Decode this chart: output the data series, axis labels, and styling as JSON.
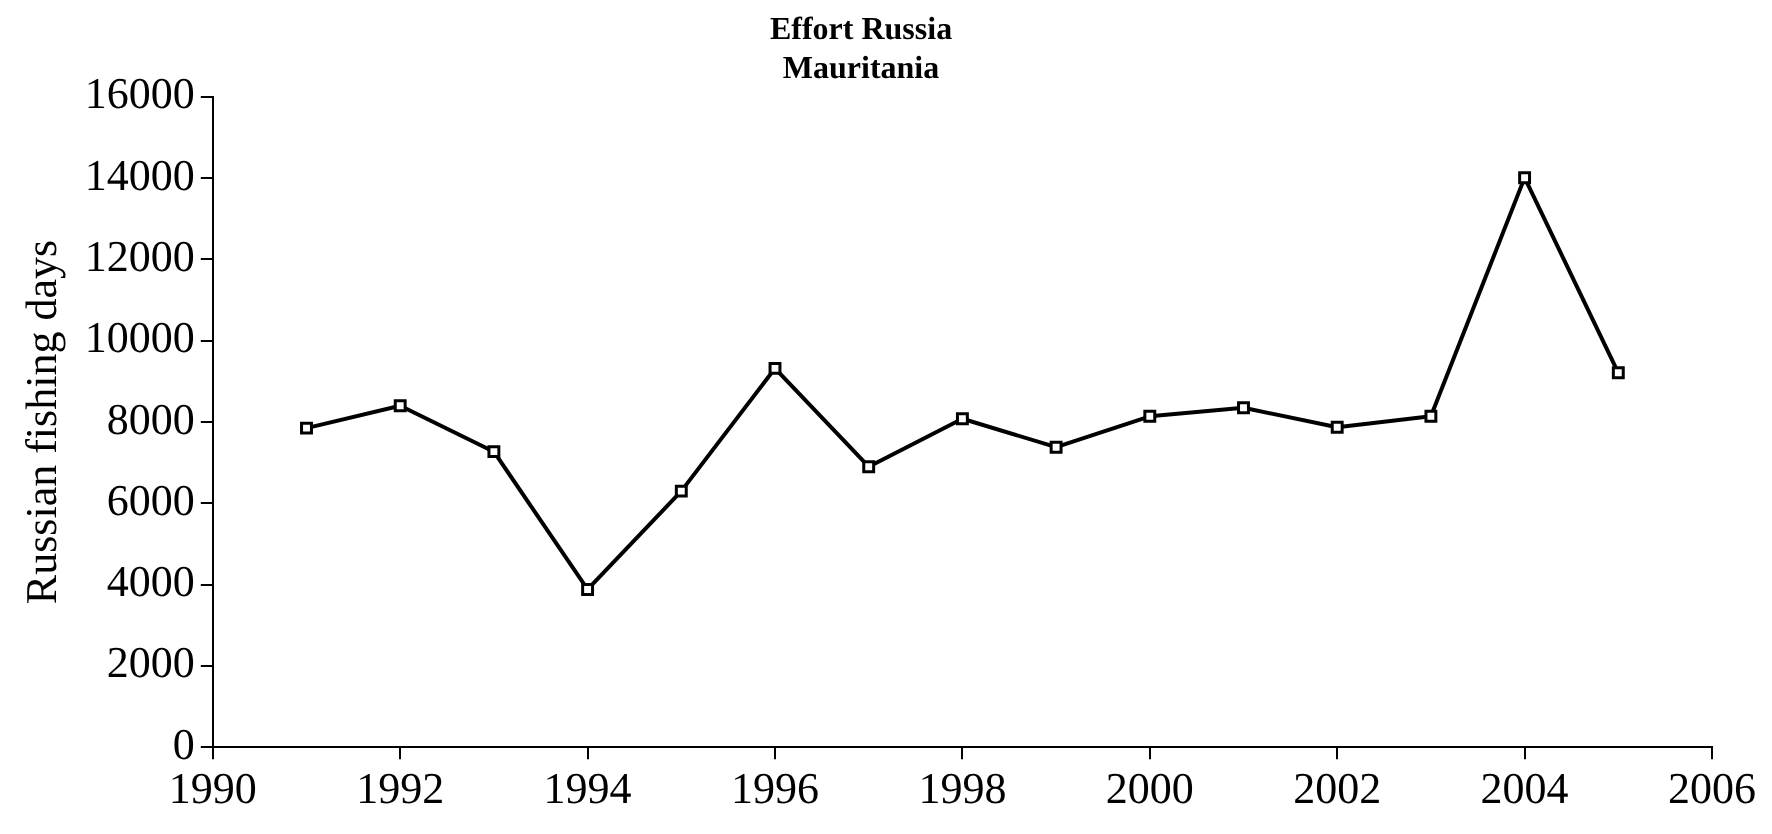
{
  "chart_data": {
    "type": "line",
    "title": "Effort Russia\nMauritania",
    "ylabel": "Russian fishing days",
    "x": [
      1991,
      1992,
      1993,
      1994,
      1995,
      1996,
      1997,
      1998,
      1999,
      2000,
      2001,
      2002,
      2003,
      2004,
      2005
    ],
    "series": [
      {
        "color": "#000000",
        "values": [
          7850,
          8400,
          7270,
          3880,
          6300,
          9320,
          6900,
          8080,
          7380,
          8140,
          8350,
          7870,
          8140,
          14010,
          9210
        ]
      }
    ],
    "xlim": [
      1990,
      2006
    ],
    "xticks": [
      1990,
      1992,
      1994,
      1996,
      1998,
      2000,
      2002,
      2004,
      2006
    ],
    "ylim": [
      0,
      16000
    ],
    "yticks": [
      0,
      2000,
      4000,
      6000,
      8000,
      10000,
      12000,
      14000,
      16000
    ],
    "grid": false,
    "legend": false,
    "marker": "square",
    "line_style": "solid"
  }
}
